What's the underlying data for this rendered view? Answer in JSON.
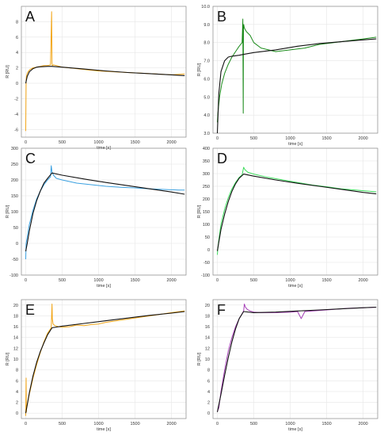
{
  "chart_data": [
    {
      "panel_letter": "A",
      "type": "line",
      "xlabel": "time [s]",
      "ylabel": "R [RU]",
      "xlim": [
        -60,
        2200
      ],
      "ylim": [
        -7,
        10
      ],
      "xticks": [
        0,
        500,
        1000,
        1500,
        2000
      ],
      "yticks": [
        -6,
        -4,
        -2,
        0,
        2,
        4,
        6,
        8
      ],
      "grid": true,
      "series": [
        {
          "role": "measured",
          "color": "#f2a516",
          "x": [
            0,
            5,
            10,
            20,
            40,
            60,
            100,
            150,
            200,
            250,
            300,
            340,
            355,
            360,
            365,
            380,
            420,
            500,
            600,
            800,
            1000,
            1200,
            1400,
            1600,
            1800,
            2000,
            2180
          ],
          "y": [
            -6.2,
            0.4,
            0.9,
            1.3,
            1.6,
            1.8,
            2.0,
            2.1,
            2.2,
            2.3,
            2.3,
            2.4,
            9.3,
            2.6,
            2.3,
            2.4,
            2.3,
            2.1,
            2.0,
            1.8,
            1.6,
            1.5,
            1.4,
            1.3,
            1.2,
            1.1,
            1.2
          ]
        },
        {
          "role": "fit",
          "color": "#111111",
          "x": [
            0,
            20,
            50,
            100,
            150,
            200,
            300,
            360,
            500,
            800,
            1100,
            1400,
            1700,
            2000,
            2180
          ],
          "y": [
            0,
            0.9,
            1.5,
            1.9,
            2.1,
            2.15,
            2.2,
            2.2,
            2.1,
            1.85,
            1.6,
            1.4,
            1.25,
            1.1,
            1.0
          ]
        }
      ]
    },
    {
      "panel_letter": "B",
      "type": "line",
      "xlabel": "time [s]",
      "ylabel": "R [RU]",
      "xlim": [
        -60,
        2200
      ],
      "ylim": [
        3.0,
        10.0
      ],
      "xticks": [
        0,
        500,
        1000,
        1500,
        2000
      ],
      "yticks": [
        3.0,
        4.0,
        5.0,
        6.0,
        7.0,
        8.0,
        9.0,
        10.0
      ],
      "grid": true,
      "series": [
        {
          "role": "measured",
          "color": "#1a8a1a",
          "x": [
            0,
            10,
            30,
            60,
            100,
            150,
            200,
            250,
            300,
            340,
            350,
            355,
            358,
            362,
            370,
            400,
            450,
            500,
            600,
            800,
            1000,
            1200,
            1400,
            1600,
            1800,
            2000,
            2180
          ],
          "y": [
            3.6,
            4.2,
            5.0,
            5.7,
            6.3,
            6.8,
            7.2,
            7.5,
            7.8,
            8.0,
            9.3,
            4.1,
            8.8,
            9.0,
            8.8,
            8.6,
            8.4,
            8.0,
            7.7,
            7.5,
            7.6,
            7.7,
            7.9,
            8.0,
            8.1,
            8.2,
            8.3
          ]
        },
        {
          "role": "fit",
          "color": "#111111",
          "x": [
            0,
            20,
            50,
            100,
            150,
            200,
            300,
            360,
            500,
            800,
            1100,
            1400,
            1700,
            2000,
            2180
          ],
          "y": [
            3.0,
            5.2,
            6.4,
            7.0,
            7.2,
            7.25,
            7.3,
            7.35,
            7.45,
            7.6,
            7.8,
            7.95,
            8.05,
            8.15,
            8.2
          ]
        }
      ]
    },
    {
      "panel_letter": "C",
      "type": "line",
      "xlabel": "time [s]",
      "ylabel": "R [RU]",
      "xlim": [
        -60,
        2200
      ],
      "ylim": [
        -100,
        300
      ],
      "xticks": [
        0,
        500,
        1000,
        1500,
        2000
      ],
      "yticks": [
        -100,
        -50,
        0,
        50,
        100,
        150,
        200,
        250,
        300
      ],
      "grid": true,
      "series": [
        {
          "role": "measured",
          "color": "#3aa0e0",
          "x": [
            0,
            5,
            20,
            50,
            100,
            150,
            200,
            250,
            300,
            340,
            350,
            360,
            380,
            420,
            500,
            700,
            900,
            1100,
            1300,
            1500,
            1700,
            1900,
            2100,
            2180
          ],
          "y": [
            -50,
            0,
            20,
            60,
            105,
            140,
            165,
            185,
            200,
            210,
            245,
            225,
            215,
            205,
            200,
            190,
            185,
            180,
            177,
            175,
            172,
            170,
            168,
            168
          ]
        },
        {
          "role": "fit",
          "color": "#111111",
          "x": [
            0,
            20,
            50,
            100,
            150,
            200,
            250,
            300,
            360,
            500,
            800,
            1100,
            1400,
            1700,
            2000,
            2180
          ],
          "y": [
            -25,
            0,
            40,
            95,
            135,
            165,
            190,
            205,
            222,
            215,
            203,
            192,
            182,
            172,
            162,
            155
          ]
        }
      ]
    },
    {
      "panel_letter": "D",
      "type": "line",
      "xlabel": "time [s]",
      "ylabel": "R [RU]",
      "xlim": [
        -60,
        2200
      ],
      "ylim": [
        -100,
        400
      ],
      "xticks": [
        0,
        500,
        1000,
        1500,
        2000
      ],
      "yticks": [
        -100,
        -50,
        0,
        50,
        100,
        150,
        200,
        250,
        300,
        350,
        400
      ],
      "grid": true,
      "series": [
        {
          "role": "measured",
          "color": "#3ddc5c",
          "x": [
            0,
            5,
            20,
            50,
            100,
            150,
            200,
            250,
            300,
            340,
            360,
            380,
            420,
            500,
            700,
            900,
            1100,
            1300,
            1500,
            1700,
            1900,
            2100,
            2180
          ],
          "y": [
            -20,
            0,
            40,
            100,
            160,
            205,
            240,
            265,
            285,
            295,
            325,
            315,
            305,
            298,
            285,
            275,
            265,
            255,
            248,
            240,
            235,
            230,
            228
          ]
        },
        {
          "role": "fit",
          "color": "#111111",
          "x": [
            0,
            20,
            50,
            100,
            150,
            200,
            250,
            300,
            360,
            500,
            800,
            1100,
            1400,
            1700,
            2000,
            2180
          ],
          "y": [
            -5,
            30,
            80,
            140,
            190,
            230,
            260,
            282,
            298,
            290,
            275,
            262,
            250,
            238,
            226,
            220
          ]
        }
      ]
    },
    {
      "panel_letter": "E",
      "type": "line",
      "xlabel": "time [s]",
      "ylabel": "R [RU]",
      "xlim": [
        -60,
        2200
      ],
      "ylim": [
        -1,
        21
      ],
      "xticks": [
        0,
        500,
        1000,
        1500,
        2000
      ],
      "yticks": [
        0,
        2,
        4,
        6,
        8,
        10,
        12,
        14,
        16,
        18,
        20
      ],
      "grid": true,
      "series": [
        {
          "role": "measured",
          "color": "#f2a516",
          "x": [
            0,
            5,
            8,
            12,
            20,
            50,
            100,
            150,
            200,
            250,
            300,
            350,
            360,
            365,
            375,
            400,
            450,
            500,
            600,
            700,
            800,
            900,
            1000,
            1100,
            1200,
            1400,
            1600,
            1800,
            2000,
            2180
          ],
          "y": [
            -0.5,
            6.5,
            0.2,
            0.8,
            1.5,
            3.5,
            6.5,
            9.0,
            11.2,
            13.2,
            14.8,
            15.8,
            20.2,
            17.5,
            16.5,
            16.2,
            16.0,
            15.9,
            16.0,
            16.3,
            16.2,
            16.4,
            16.5,
            16.8,
            17.0,
            17.4,
            17.8,
            18.2,
            18.6,
            18.9
          ]
        },
        {
          "role": "fit",
          "color": "#111111",
          "x": [
            0,
            50,
            100,
            150,
            200,
            250,
            300,
            360,
            500,
            800,
            1100,
            1400,
            1700,
            2000,
            2180
          ],
          "y": [
            0,
            3.8,
            6.9,
            9.4,
            11.4,
            13.0,
            14.5,
            15.8,
            16.1,
            16.6,
            17.1,
            17.6,
            18.1,
            18.5,
            18.8
          ]
        }
      ]
    },
    {
      "panel_letter": "F",
      "type": "line",
      "xlabel": "time [s]",
      "ylabel": "R [RU]",
      "xlim": [
        -60,
        2200
      ],
      "ylim": [
        -1,
        21
      ],
      "xticks": [
        0,
        500,
        1000,
        1500,
        2000
      ],
      "yticks": [
        0,
        2,
        4,
        6,
        8,
        10,
        12,
        14,
        16,
        18,
        20
      ],
      "grid": true,
      "series": [
        {
          "role": "measured",
          "color": "#a640b8",
          "x": [
            0,
            20,
            50,
            100,
            150,
            200,
            250,
            300,
            340,
            360,
            370,
            385,
            410,
            450,
            500,
            600,
            800,
            1000,
            1100,
            1150,
            1200,
            1400,
            1600,
            1800,
            2000,
            2180
          ],
          "y": [
            0.3,
            1.0,
            4.0,
            8.0,
            11.5,
            14.0,
            16.0,
            17.5,
            18.4,
            18.9,
            20.2,
            19.6,
            19.2,
            18.9,
            18.7,
            18.6,
            18.6,
            18.7,
            18.8,
            17.5,
            18.8,
            19.0,
            19.2,
            19.4,
            19.5,
            19.6
          ]
        },
        {
          "role": "fit",
          "color": "#111111",
          "x": [
            0,
            50,
            100,
            150,
            200,
            250,
            300,
            360,
            500,
            800,
            1100,
            1400,
            1700,
            2000,
            2180
          ],
          "y": [
            0.2,
            3.5,
            7.0,
            10.3,
            13.2,
            15.6,
            17.5,
            18.8,
            18.6,
            18.7,
            18.9,
            19.1,
            19.3,
            19.5,
            19.6
          ]
        }
      ]
    }
  ]
}
